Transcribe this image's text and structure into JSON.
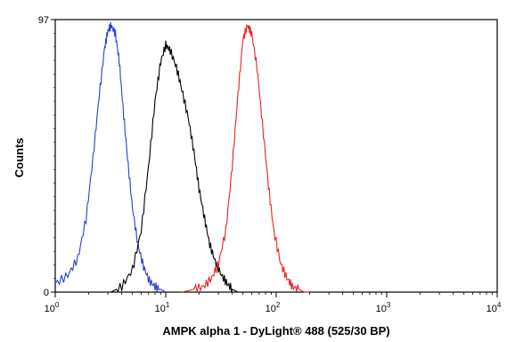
{
  "chart_data": {
    "type": "line",
    "title": "",
    "xlabel": "AMPK alpha 1 - DyLight® 488 (525/30 BP)",
    "ylabel": "Counts",
    "xscale": "log",
    "xlim": [
      1,
      10000
    ],
    "ylim": [
      0,
      97
    ],
    "grid": false,
    "legend": "none",
    "y_ticks": [
      {
        "value": 0,
        "label": "0"
      },
      {
        "value": 97,
        "label": "97"
      }
    ],
    "x_ticks": [
      {
        "value": 1,
        "base": "10",
        "exp": "0"
      },
      {
        "value": 10,
        "base": "10",
        "exp": "1"
      },
      {
        "value": 100,
        "base": "10",
        "exp": "2"
      },
      {
        "value": 1000,
        "base": "10",
        "exp": "3"
      },
      {
        "value": 10000,
        "base": "10",
        "exp": "4"
      }
    ],
    "series": [
      {
        "color": "#2b3dd6",
        "x": [
          1.0,
          1.3,
          1.6,
          1.9,
          2.2,
          2.5,
          2.8,
          3.0,
          3.2,
          3.5,
          3.8,
          4.1,
          4.5,
          5.0,
          5.6,
          6.3,
          7.1,
          8.0,
          9.0,
          10.0
        ],
        "y": [
          3,
          6,
          12,
          26,
          48,
          70,
          87,
          93,
          95,
          92,
          82,
          66,
          48,
          30,
          17,
          9,
          4,
          2,
          1,
          0
        ]
      },
      {
        "color": "#000000",
        "x": [
          3.2,
          4.0,
          5.0,
          6.0,
          7.0,
          8.0,
          9.0,
          10.0,
          11.0,
          12.5,
          14.0,
          16.0,
          18.0,
          20.0,
          22.5,
          25.0,
          28.0,
          32.0,
          36.0,
          40.0,
          45.0,
          50.0
        ],
        "y": [
          0,
          2,
          8,
          22,
          45,
          68,
          82,
          88,
          86,
          80,
          72,
          62,
          50,
          37,
          26,
          17,
          11,
          6,
          3,
          1,
          0,
          0
        ]
      },
      {
        "color": "#ee2020",
        "x": [
          14.0,
          18.0,
          22.0,
          26.0,
          30.0,
          35.0,
          40.0,
          45.0,
          50.0,
          55.0,
          60.0,
          67.0,
          75.0,
          85.0,
          95.0,
          110.0,
          125.0,
          140.0,
          160.0,
          180.0,
          200.0
        ],
        "y": [
          0,
          1,
          2,
          5,
          10,
          22,
          45,
          70,
          90,
          95,
          92,
          80,
          60,
          38,
          22,
          10,
          5,
          2,
          1,
          0,
          0
        ]
      }
    ]
  }
}
